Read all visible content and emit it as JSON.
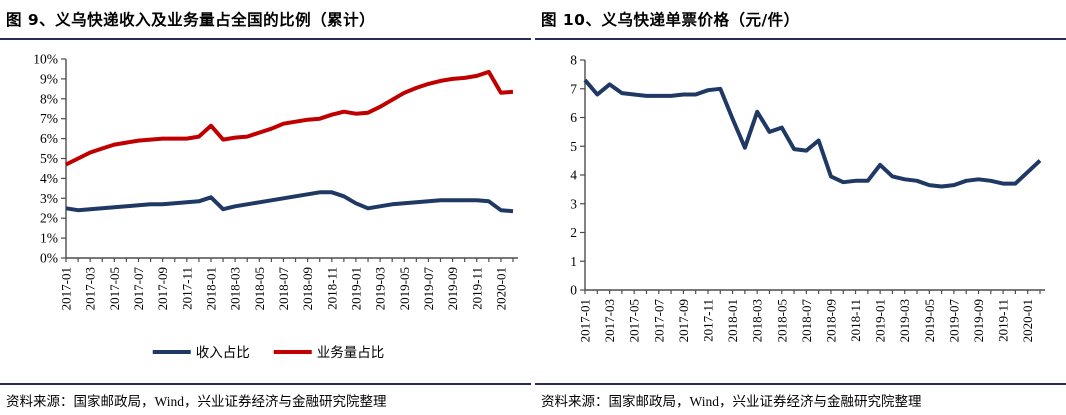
{
  "panels": [
    {
      "title": "图 9、义乌快递收入及业务量占全国的比例（累计）",
      "source": "资料来源：国家邮政局，Wind，兴业证券经济与金融研究院整理"
    },
    {
      "title": "图 10、义乌快递单票价格（元/件）",
      "source": "资料来源：国家邮政局，Wind，兴业证券经济与金融研究院整理"
    }
  ],
  "colors": {
    "navy_series": "#1F3864",
    "red_series": "#C00000",
    "rule_navy": "#272c5b",
    "axis_gray": "#4d4d4d"
  },
  "chart_data": [
    {
      "type": "line",
      "title": "义乌快递收入及业务量占全国的比例（累计）",
      "categories": [
        "2017-01",
        "2017-02",
        "2017-03",
        "2017-04",
        "2017-05",
        "2017-06",
        "2017-07",
        "2017-08",
        "2017-09",
        "2017-10",
        "2017-11",
        "2017-12",
        "2018-01",
        "2018-02",
        "2018-03",
        "2018-04",
        "2018-05",
        "2018-06",
        "2018-07",
        "2018-08",
        "2018-09",
        "2018-10",
        "2018-11",
        "2018-12",
        "2019-01",
        "2019-02",
        "2019-03",
        "2019-04",
        "2019-05",
        "2019-06",
        "2019-07",
        "2019-08",
        "2019-09",
        "2019-10",
        "2019-11",
        "2019-12",
        "2020-01",
        "2020-02"
      ],
      "x_labels_shown": [
        "2017-01",
        "2017-03",
        "2017-05",
        "2017-07",
        "2017-09",
        "2017-11",
        "2018-01",
        "2018-03",
        "2018-05",
        "2018-07",
        "2018-09",
        "2018-11",
        "2019-01",
        "2019-03",
        "2019-05",
        "2019-07",
        "2019-09",
        "2019-11",
        "2020-01"
      ],
      "x_label_every": 2,
      "ylim": [
        0,
        10
      ],
      "ytick_step": 1,
      "ytick_format": "percent",
      "grid": false,
      "legend_position": "bottom",
      "series": [
        {
          "name": "收入占比",
          "color": "#1F3864",
          "values": [
            2.5,
            2.4,
            2.45,
            2.5,
            2.55,
            2.6,
            2.65,
            2.7,
            2.7,
            2.75,
            2.8,
            2.85,
            3.05,
            2.45,
            2.6,
            2.7,
            2.8,
            2.9,
            3.0,
            3.1,
            3.2,
            3.3,
            3.3,
            3.1,
            2.75,
            2.5,
            2.6,
            2.7,
            2.75,
            2.8,
            2.85,
            2.9,
            2.9,
            2.9,
            2.9,
            2.85,
            2.4,
            2.35
          ]
        },
        {
          "name": "业务量占比",
          "color": "#C00000",
          "values": [
            4.7,
            5.0,
            5.3,
            5.5,
            5.7,
            5.8,
            5.9,
            5.95,
            6.0,
            6.0,
            6.0,
            6.1,
            6.65,
            5.95,
            6.05,
            6.1,
            6.3,
            6.5,
            6.75,
            6.85,
            6.95,
            7.0,
            7.2,
            7.35,
            7.25,
            7.3,
            7.6,
            7.95,
            8.3,
            8.55,
            8.75,
            8.9,
            9.0,
            9.05,
            9.15,
            9.35,
            8.3,
            8.35
          ]
        }
      ]
    },
    {
      "type": "line",
      "title": "义乌快递单票价格（元/件）",
      "categories": [
        "2017-01",
        "2017-02",
        "2017-03",
        "2017-04",
        "2017-05",
        "2017-06",
        "2017-07",
        "2017-08",
        "2017-09",
        "2017-10",
        "2017-11",
        "2017-12",
        "2018-01",
        "2018-02",
        "2018-03",
        "2018-04",
        "2018-05",
        "2018-06",
        "2018-07",
        "2018-08",
        "2018-09",
        "2018-10",
        "2018-11",
        "2018-12",
        "2019-01",
        "2019-02",
        "2019-03",
        "2019-04",
        "2019-05",
        "2019-06",
        "2019-07",
        "2019-08",
        "2019-09",
        "2019-10",
        "2019-11",
        "2019-12",
        "2020-01",
        "2020-02"
      ],
      "x_labels_shown": [
        "2017-01",
        "2017-03",
        "2017-05",
        "2017-07",
        "2017-09",
        "2017-11",
        "2018-01",
        "2018-03",
        "2018-05",
        "2018-07",
        "2018-09",
        "2018-11",
        "2019-01",
        "2019-03",
        "2019-05",
        "2019-07",
        "2019-09",
        "2019-11",
        "2020-01"
      ],
      "x_label_every": 2,
      "ylim": [
        0,
        8
      ],
      "ytick_step": 1,
      "ytick_format": "number",
      "grid": false,
      "legend_position": "none",
      "series": [
        {
          "name": "单票价格",
          "color": "#1F3864",
          "values": [
            7.3,
            6.8,
            7.15,
            6.85,
            6.8,
            6.75,
            6.75,
            6.75,
            6.8,
            6.8,
            6.95,
            7.0,
            5.95,
            4.95,
            6.2,
            5.5,
            5.65,
            4.9,
            4.85,
            5.2,
            3.95,
            3.75,
            3.8,
            3.8,
            4.35,
            3.95,
            3.85,
            3.8,
            3.65,
            3.6,
            3.65,
            3.8,
            3.85,
            3.8,
            3.7,
            3.7,
            4.1,
            4.5
          ]
        }
      ]
    }
  ]
}
